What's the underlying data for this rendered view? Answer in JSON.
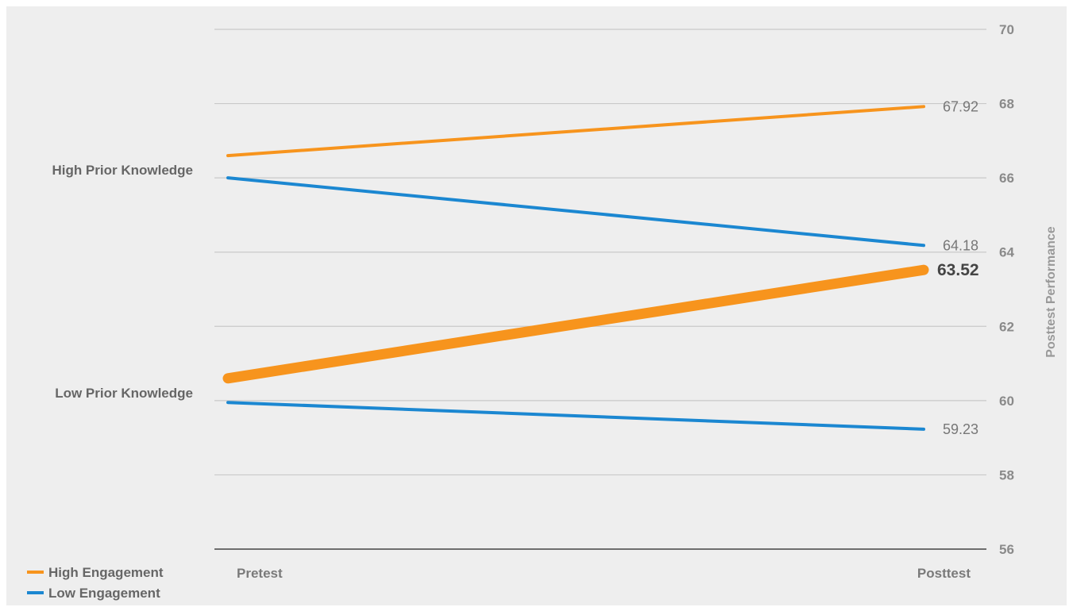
{
  "chart_data": {
    "type": "line",
    "x": [
      "Pretest",
      "Posttest"
    ],
    "ylabel": "Posttest Performance",
    "ylim": [
      56,
      70
    ],
    "yticks": [
      56,
      58,
      60,
      62,
      64,
      66,
      68,
      70
    ],
    "grid": true,
    "colors": {
      "high": "#f7941d",
      "low": "#1b87d1"
    },
    "row_labels": [
      {
        "text": "High Prior Knowledge",
        "value": 66
      },
      {
        "text": "Low Prior Knowledge",
        "value": 60
      }
    ],
    "series": [
      {
        "engagement": "high",
        "start": 66.6,
        "end": 67.92,
        "label": "67.92",
        "emphasis": false
      },
      {
        "engagement": "low",
        "start": 66.0,
        "end": 64.18,
        "label": "64.18",
        "emphasis": false
      },
      {
        "engagement": "high",
        "start": 60.6,
        "end": 63.52,
        "label": "63.52",
        "emphasis": true
      },
      {
        "engagement": "low",
        "start": 59.95,
        "end": 59.23,
        "label": "59.23",
        "emphasis": false
      }
    ],
    "legend": {
      "position": "bottom-left",
      "items": [
        {
          "key": "high",
          "label": "High Engagement"
        },
        {
          "key": "low",
          "label": "Low Engagement"
        }
      ]
    }
  }
}
